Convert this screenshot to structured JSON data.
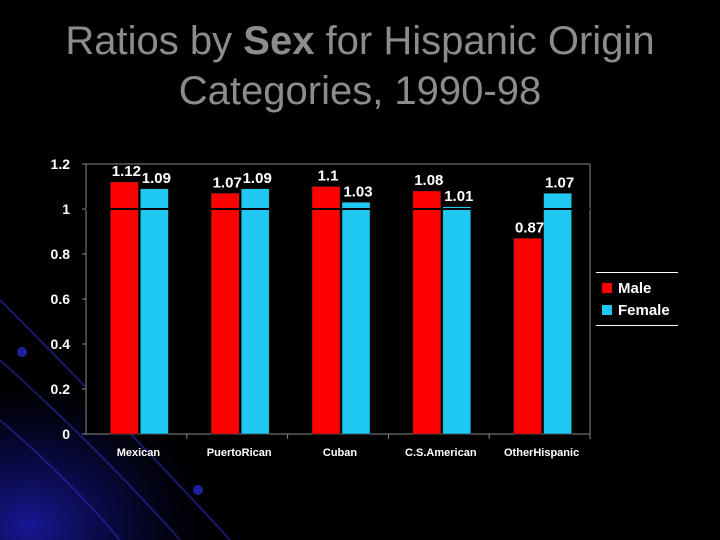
{
  "title": {
    "prefix": "Ratios by ",
    "emphasis": "Sex",
    "suffix": " for Hispanic Origin",
    "line2": "Categories, 1990-98"
  },
  "colors": {
    "background": "#000000",
    "accent": "#1a1aa6",
    "title_text": "#8c8c8c",
    "axis_text": "#ffffff",
    "male": "#ff0000",
    "female": "#1ec8f0"
  },
  "chart_data": {
    "type": "bar",
    "categories": [
      "Mexican",
      "PuertoRican",
      "Cuban",
      "C.S.American",
      "OtherHispanic"
    ],
    "series": [
      {
        "name": "Male",
        "values": [
          1.12,
          1.07,
          1.1,
          1.08,
          0.87
        ],
        "labels": [
          "1.12",
          "1.07",
          "1.1",
          "1.08",
          "0.87"
        ]
      },
      {
        "name": "Female",
        "values": [
          1.09,
          1.09,
          1.03,
          1.01,
          1.07
        ],
        "labels": [
          "1.09",
          "1.09",
          "1.03",
          "1.01",
          "1.07"
        ]
      }
    ],
    "yticks": [
      "0",
      "0.2",
      "0.4",
      "0.6",
      "0.8",
      "1",
      "1.2"
    ],
    "ylim": [
      0,
      1.2
    ],
    "reference_line": 1,
    "legend_position": "right",
    "grid": false
  }
}
